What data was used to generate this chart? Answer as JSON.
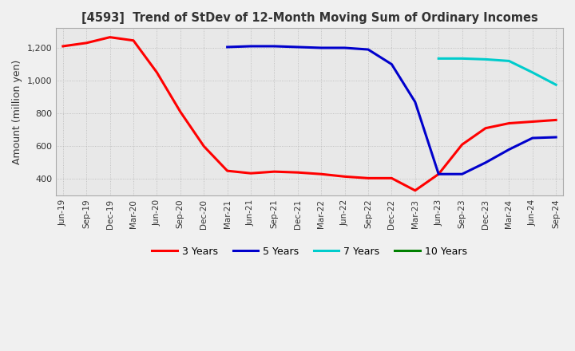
{
  "title": "[4593]  Trend of StDev of 12-Month Moving Sum of Ordinary Incomes",
  "ylabel": "Amount (million yen)",
  "background_color": "#f0f0f0",
  "plot_bg_color": "#e8e8e8",
  "grid_color": "#aaaaaa",
  "ylim": [
    300,
    1320
  ],
  "yticks": [
    400,
    600,
    800,
    1000,
    1200
  ],
  "legend_entries": [
    "3 Years",
    "5 Years",
    "7 Years",
    "10 Years"
  ],
  "legend_colors": [
    "#ff0000",
    "#0000cc",
    "#00cccc",
    "#008000"
  ],
  "x_labels": [
    "Jun-19",
    "Sep-19",
    "Dec-19",
    "Mar-20",
    "Jun-20",
    "Sep-20",
    "Dec-20",
    "Mar-21",
    "Jun-21",
    "Sep-21",
    "Dec-21",
    "Mar-22",
    "Jun-22",
    "Sep-22",
    "Dec-22",
    "Mar-23",
    "Jun-23",
    "Sep-23",
    "Dec-23",
    "Mar-24",
    "Jun-24",
    "Sep-24"
  ],
  "series_3y": {
    "color": "#ff0000",
    "data_x": [
      0,
      1,
      2,
      3,
      4,
      5,
      6,
      7,
      8,
      9,
      10,
      11,
      12,
      13,
      14,
      15,
      16,
      17,
      18,
      19,
      20,
      21
    ],
    "data_y": [
      1210,
      1230,
      1265,
      1245,
      1050,
      810,
      600,
      450,
      435,
      445,
      440,
      430,
      415,
      405,
      405,
      330,
      430,
      610,
      710,
      740,
      750,
      760
    ]
  },
  "series_5y": {
    "color": "#0000cc",
    "data_x": [
      7,
      8,
      9,
      10,
      11,
      12,
      13,
      14,
      15,
      16,
      17,
      18,
      19,
      20,
      21
    ],
    "data_y": [
      1205,
      1210,
      1210,
      1205,
      1200,
      1200,
      1190,
      1100,
      870,
      430,
      430,
      500,
      580,
      650,
      655
    ]
  },
  "series_7y": {
    "color": "#00cccc",
    "data_x": [
      16,
      17,
      18,
      19,
      20,
      21
    ],
    "data_y": [
      1135,
      1135,
      1130,
      1120,
      1050,
      975
    ]
  },
  "series_10y": {
    "color": "#008000",
    "data_x": [],
    "data_y": []
  }
}
